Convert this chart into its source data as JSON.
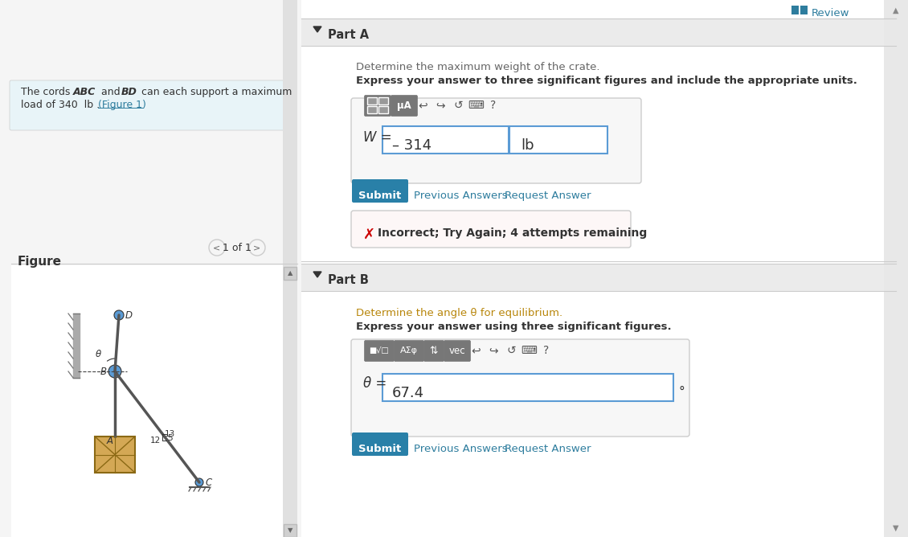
{
  "bg_color": "#f5f5f5",
  "white": "#ffffff",
  "light_blue_bg": "#e8f4f8",
  "teal_btn": "#2980a8",
  "dark_text": "#333333",
  "gray_text": "#666666",
  "orange_text": "#b8860b",
  "blue_link": "#2e7d9e",
  "red_x": "#cc0000",
  "border_gray": "#cccccc",
  "border_blue": "#5b9bd5",
  "figure_label": "Figure",
  "nav_text": "1 of 1",
  "review_text": "Review",
  "partA_label": "Part A",
  "partA_q1": "Determine the maximum weight of the crate.",
  "partA_q2": "Express your answer to three significant figures and include the appropriate units.",
  "W_value": "– 314",
  "W_unit": "lb",
  "submit_text": "Submit",
  "prev_ans_text": "Previous Answers",
  "req_ans_text": "Request Answer",
  "incorrect_text": "Incorrect; Try Again; 4 attempts remaining",
  "partB_label": "Part B",
  "partB_q1": "Determine the angle θ for equilibrium.",
  "partB_q2": "Express your answer using three significant figures.",
  "theta_value": "67.4",
  "theta_unit": "°",
  "fig_width": 11.3,
  "fig_height": 6.68
}
